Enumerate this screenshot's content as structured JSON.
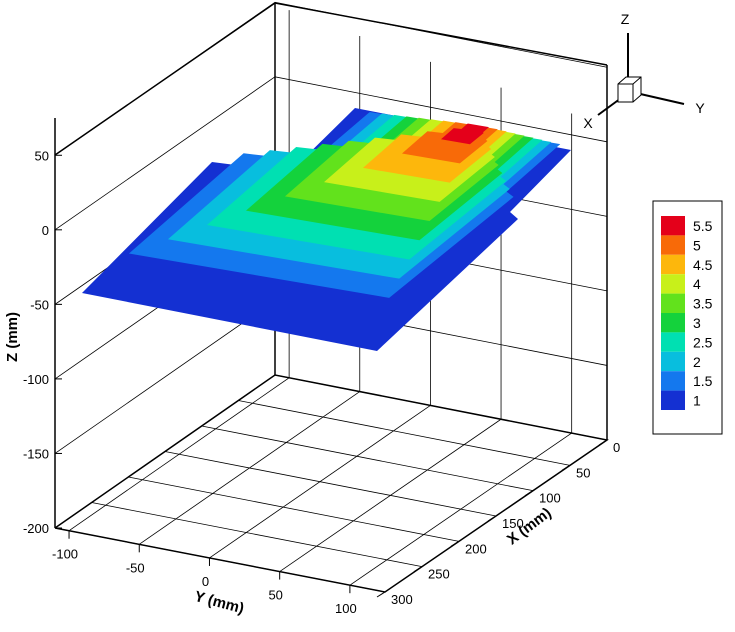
{
  "chart_data": {
    "type": "contour",
    "view": "3D perspective",
    "axes": {
      "x": {
        "label": "X (mm)",
        "ticks": [
          0,
          50,
          100,
          150,
          200,
          250,
          300
        ],
        "range": [
          0,
          300
        ]
      },
      "y": {
        "label": "Y (mm)",
        "ticks": [
          -100,
          -50,
          0,
          50,
          100
        ],
        "range": [
          -110,
          125
        ]
      },
      "z": {
        "label": "Z (mm)",
        "ticks": [
          50,
          0,
          -50,
          -100,
          -150,
          -200
        ],
        "range": [
          -200,
          75
        ]
      }
    },
    "triad": {
      "z": "Z",
      "x": "X",
      "y": "Y"
    },
    "legend": {
      "levels": [
        "5.5",
        "5",
        "4.5",
        "4",
        "3.5",
        "3",
        "2.5",
        "2",
        "1.5",
        "1"
      ],
      "colors": [
        "#e4001a",
        "#f86a08",
        "#fdb70c",
        "#c8f01a",
        "#62e21c",
        "#14d23c",
        "#00e0b2",
        "#08bede",
        "#1478ee",
        "#1430d2"
      ],
      "placement": "right"
    },
    "colormap_min": 1,
    "colormap_max": 5.5
  }
}
